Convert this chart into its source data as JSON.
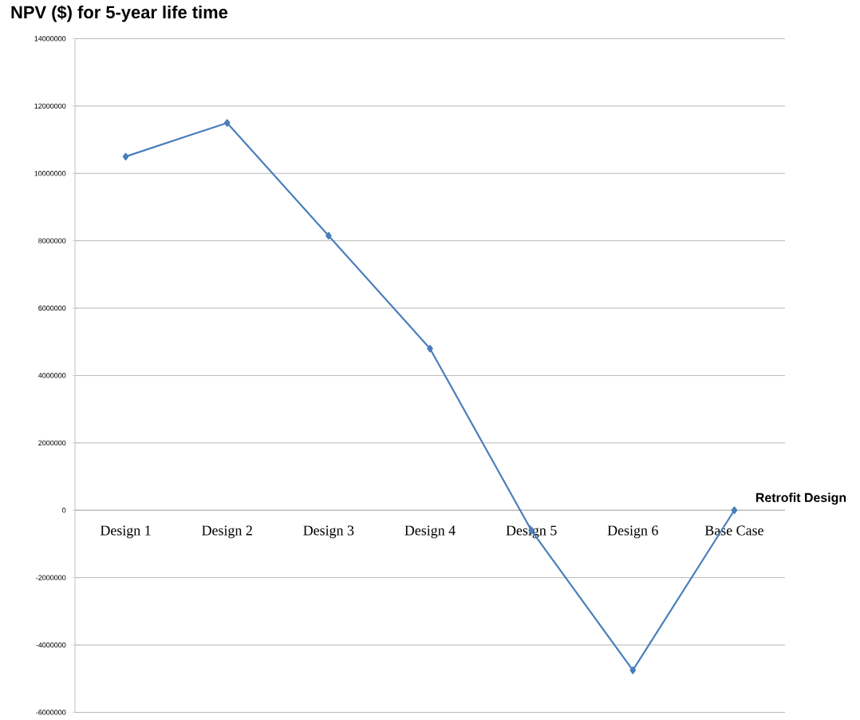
{
  "chart_data": {
    "type": "line",
    "title": "NPV ($)  for 5-year life time",
    "xlabel": "Retrofit Design",
    "categories": [
      "Design 1",
      "Design 2",
      "Design 3",
      "Design 4",
      "Design 5",
      "Design 6",
      "Base Case"
    ],
    "series": [
      {
        "color": "#4a7ebb",
        "values": [
          10500000,
          11500000,
          8150000,
          4800000,
          -600000,
          -4750000,
          0
        ]
      }
    ],
    "ylim": [
      -6000000,
      14000000
    ],
    "yticks": [
      -6000000,
      -4000000,
      -2000000,
      0,
      2000000,
      4000000,
      6000000,
      8000000,
      10000000,
      12000000,
      14000000
    ],
    "grid": "y",
    "marker": "diamond",
    "line_style": "solid"
  }
}
